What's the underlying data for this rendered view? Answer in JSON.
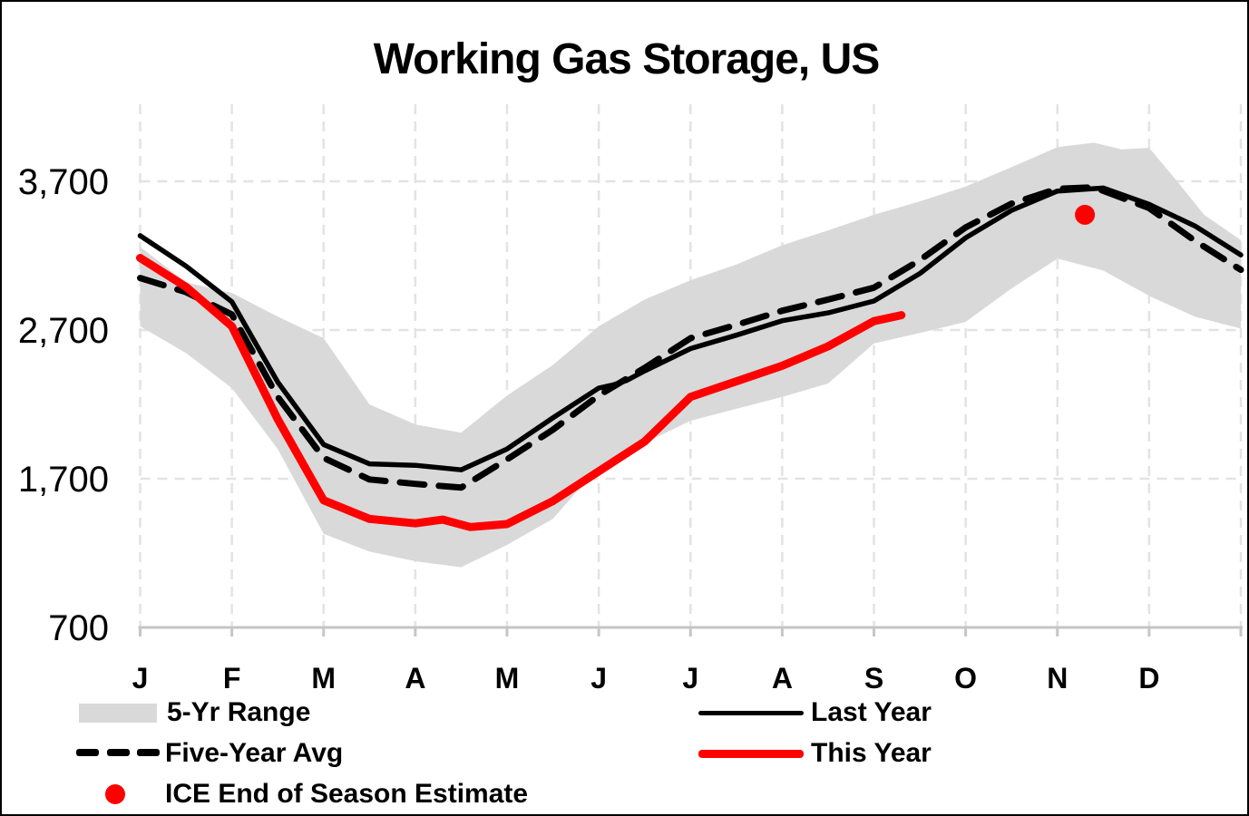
{
  "title": "Working Gas Storage, US",
  "legend": {
    "items": [
      {
        "label": "5-Yr Range",
        "swatch": "gray-band"
      },
      {
        "label": "Last Year",
        "swatch": "black-solid-line"
      },
      {
        "label": "Five-Year Avg",
        "swatch": "black-dashed-line"
      },
      {
        "label": "This Year",
        "swatch": "red-thick-line"
      },
      {
        "label": "ICE End of Season Estimate",
        "swatch": "red-dot"
      }
    ]
  },
  "chart_data": {
    "type": "line",
    "title": "Working Gas Storage, US",
    "xlabel": "",
    "ylabel": "",
    "grid": true,
    "legend_position": "bottom",
    "x_axis": {
      "unit": "month",
      "tick_labels": [
        "J",
        "F",
        "M",
        "A",
        "M",
        "J",
        "J",
        "A",
        "S",
        "O",
        "N",
        "D"
      ],
      "range_months": [
        0,
        12
      ]
    },
    "y_axis": {
      "ticks": [
        700,
        1700,
        2700,
        3700
      ],
      "tick_labels": [
        "700",
        "1,700",
        "2,700",
        "3,700"
      ],
      "gridline_values": [
        1700,
        2700,
        3700
      ],
      "range": [
        700,
        4210
      ]
    },
    "colors": {
      "band": "#D9D9D9",
      "gridline": "#E3E3E3",
      "axis": "#C6C6C6",
      "last_year": "#000000",
      "five_year_avg": "#000000",
      "this_year": "#FF0000",
      "ice_dot": "#FF0000"
    },
    "band": {
      "name": "5-Yr Range",
      "points_top": [
        [
          0,
          3260
        ],
        [
          0.5,
          3020
        ],
        [
          1,
          2950
        ],
        [
          1.5,
          2790
        ],
        [
          2,
          2645
        ],
        [
          2.5,
          2200
        ],
        [
          3,
          2065
        ],
        [
          3.5,
          2010
        ],
        [
          4,
          2260
        ],
        [
          4.5,
          2465
        ],
        [
          5,
          2725
        ],
        [
          5.5,
          2905
        ],
        [
          6,
          3035
        ],
        [
          6.5,
          3140
        ],
        [
          7,
          3270
        ],
        [
          7.5,
          3370
        ],
        [
          8,
          3475
        ],
        [
          8.5,
          3565
        ],
        [
          9,
          3665
        ],
        [
          9.5,
          3795
        ],
        [
          10,
          3930
        ],
        [
          10.4,
          3960
        ],
        [
          10.7,
          3915
        ],
        [
          11,
          3925
        ],
        [
          11.3,
          3705
        ],
        [
          11.6,
          3475
        ],
        [
          12,
          3305
        ]
      ],
      "points_bottom": [
        [
          0,
          2725
        ],
        [
          0.5,
          2545
        ],
        [
          1,
          2310
        ],
        [
          1.5,
          1900
        ],
        [
          2,
          1330
        ],
        [
          2.5,
          1210
        ],
        [
          3,
          1145
        ],
        [
          3.5,
          1105
        ],
        [
          4,
          1255
        ],
        [
          4.5,
          1430
        ],
        [
          5,
          1785
        ],
        [
          5.5,
          1940
        ],
        [
          6,
          2090
        ],
        [
          6.5,
          2170
        ],
        [
          7,
          2250
        ],
        [
          7.5,
          2340
        ],
        [
          8,
          2610
        ],
        [
          8.5,
          2680
        ],
        [
          9,
          2755
        ],
        [
          9.5,
          2980
        ],
        [
          10,
          3180
        ],
        [
          10.5,
          3100
        ],
        [
          11,
          2930
        ],
        [
          11.5,
          2790
        ],
        [
          12,
          2710
        ]
      ]
    },
    "series": [
      {
        "name": "Last Year",
        "style": "solid",
        "color": "#000000",
        "width": 5.5,
        "points": [
          [
            0,
            3335
          ],
          [
            0.5,
            3130
          ],
          [
            1,
            2890
          ],
          [
            1.5,
            2350
          ],
          [
            2,
            1930
          ],
          [
            2.5,
            1800
          ],
          [
            3,
            1790
          ],
          [
            3.5,
            1760
          ],
          [
            4,
            1900
          ],
          [
            4.5,
            2110
          ],
          [
            5,
            2310
          ],
          [
            5.15,
            2330
          ],
          [
            5.3,
            2360
          ],
          [
            5.5,
            2425
          ],
          [
            6,
            2575
          ],
          [
            6.5,
            2665
          ],
          [
            7,
            2763
          ],
          [
            7.5,
            2815
          ],
          [
            8,
            2895
          ],
          [
            8.5,
            3080
          ],
          [
            9,
            3320
          ],
          [
            9.5,
            3505
          ],
          [
            10,
            3635
          ],
          [
            10.5,
            3655
          ],
          [
            11,
            3545
          ],
          [
            11.5,
            3400
          ],
          [
            12,
            3205
          ]
        ]
      },
      {
        "name": "Five-Year Avg",
        "style": "dashed",
        "color": "#000000",
        "width": 7,
        "points": [
          [
            0,
            3050
          ],
          [
            0.5,
            2955
          ],
          [
            1,
            2805
          ],
          [
            1.5,
            2250
          ],
          [
            2,
            1840
          ],
          [
            2.5,
            1695
          ],
          [
            3,
            1665
          ],
          [
            3.5,
            1640
          ],
          [
            4,
            1830
          ],
          [
            4.5,
            2030
          ],
          [
            5,
            2260
          ],
          [
            5.5,
            2445
          ],
          [
            6,
            2645
          ],
          [
            6.5,
            2735
          ],
          [
            7,
            2830
          ],
          [
            7.5,
            2905
          ],
          [
            8,
            2985
          ],
          [
            8.5,
            3170
          ],
          [
            9,
            3390
          ],
          [
            9.5,
            3550
          ],
          [
            10,
            3650
          ],
          [
            10.4,
            3660
          ],
          [
            11,
            3520
          ],
          [
            11.5,
            3300
          ],
          [
            12,
            3105
          ]
        ]
      },
      {
        "name": "This Year",
        "style": "solid",
        "color": "#FF0000",
        "width": 9,
        "points": [
          [
            0,
            3185
          ],
          [
            0.5,
            2990
          ],
          [
            1,
            2725
          ],
          [
            1.5,
            2100
          ],
          [
            2,
            1555
          ],
          [
            2.5,
            1430
          ],
          [
            3,
            1400
          ],
          [
            3.3,
            1425
          ],
          [
            3.6,
            1375
          ],
          [
            4,
            1395
          ],
          [
            4.5,
            1550
          ],
          [
            5,
            1750
          ],
          [
            5.5,
            1950
          ],
          [
            6,
            2250
          ],
          [
            6.5,
            2355
          ],
          [
            7,
            2460
          ],
          [
            7.5,
            2590
          ],
          [
            8,
            2760
          ],
          [
            8.3,
            2800
          ]
        ]
      }
    ],
    "point_marker": {
      "name": "ICE End of Season Estimate",
      "color": "#FF0000",
      "month": 10.3,
      "value": 3475,
      "radius": 11
    }
  }
}
